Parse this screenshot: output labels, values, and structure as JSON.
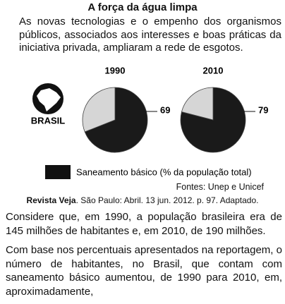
{
  "title": "A força da água limpa",
  "intro": "As novas tecnologias e o empenho dos organismos públicos, associados aos interesses e boas práticas da iniciativa privada, ampliaram a rede de esgotos.",
  "country_label": "BRASIL",
  "legend": "Saneamento básico (% da população total)",
  "chart_data": [
    {
      "type": "pie",
      "title": "1990",
      "values": [
        69,
        31
      ],
      "colors": [
        "#1a1a1a",
        "#d6d6d6"
      ]
    },
    {
      "type": "pie",
      "title": "2010",
      "values": [
        79,
        21
      ],
      "colors": [
        "#1a1a1a",
        "#d6d6d6"
      ]
    }
  ],
  "sources": "Fontes: Unep e Unicef",
  "citation": {
    "source": "Revista Veja",
    "details": ". São Paulo: Abril. 13 jun. 2012. p. 97. Adaptado."
  },
  "question": [
    "Considere que, em 1990, a população brasileira era de 145 milhões de habitantes e, em 2010, de 190 milhões.",
    "Com base nos percentuais apresentados na reportagem, o número de habitantes, no Brasil, que contam com saneamento básico aumentou, de 1990 para 2010, em, aproximadamente,"
  ]
}
